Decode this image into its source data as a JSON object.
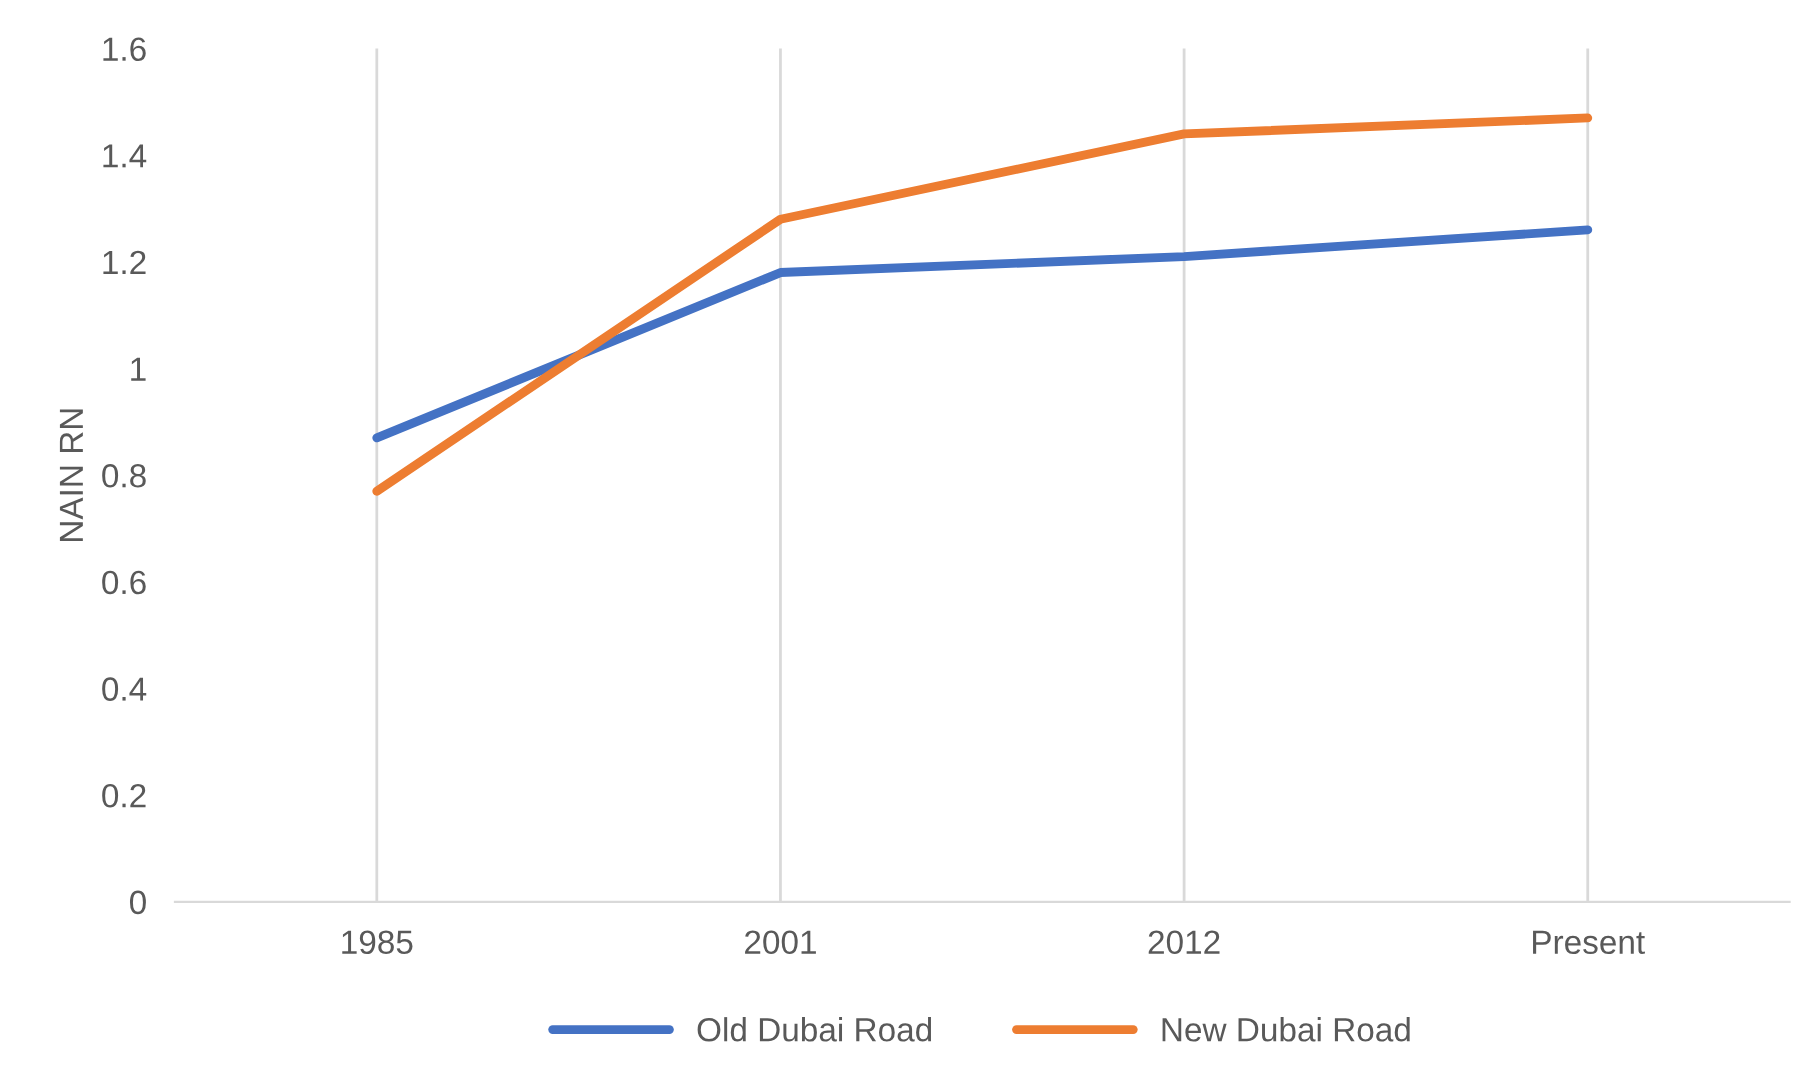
{
  "chart_data": {
    "type": "line",
    "ylabel": "NAIN RN",
    "categories": [
      "1985",
      "2001",
      "2012",
      "Present"
    ],
    "series": [
      {
        "name": "Old Dubai Road",
        "color": "#4472c4",
        "values": [
          0.87,
          1.18,
          1.21,
          1.26
        ]
      },
      {
        "name": "New Dubai Road",
        "color": "#ed7d31",
        "values": [
          0.77,
          1.28,
          1.44,
          1.47
        ]
      }
    ],
    "ylim": [
      0,
      1.6
    ],
    "yticks": [
      0,
      0.2,
      0.4,
      0.6,
      0.8,
      1,
      1.2,
      1.4,
      1.6
    ],
    "grid": "x",
    "legend": "bottom",
    "marker": "none",
    "line_style": "solid"
  }
}
